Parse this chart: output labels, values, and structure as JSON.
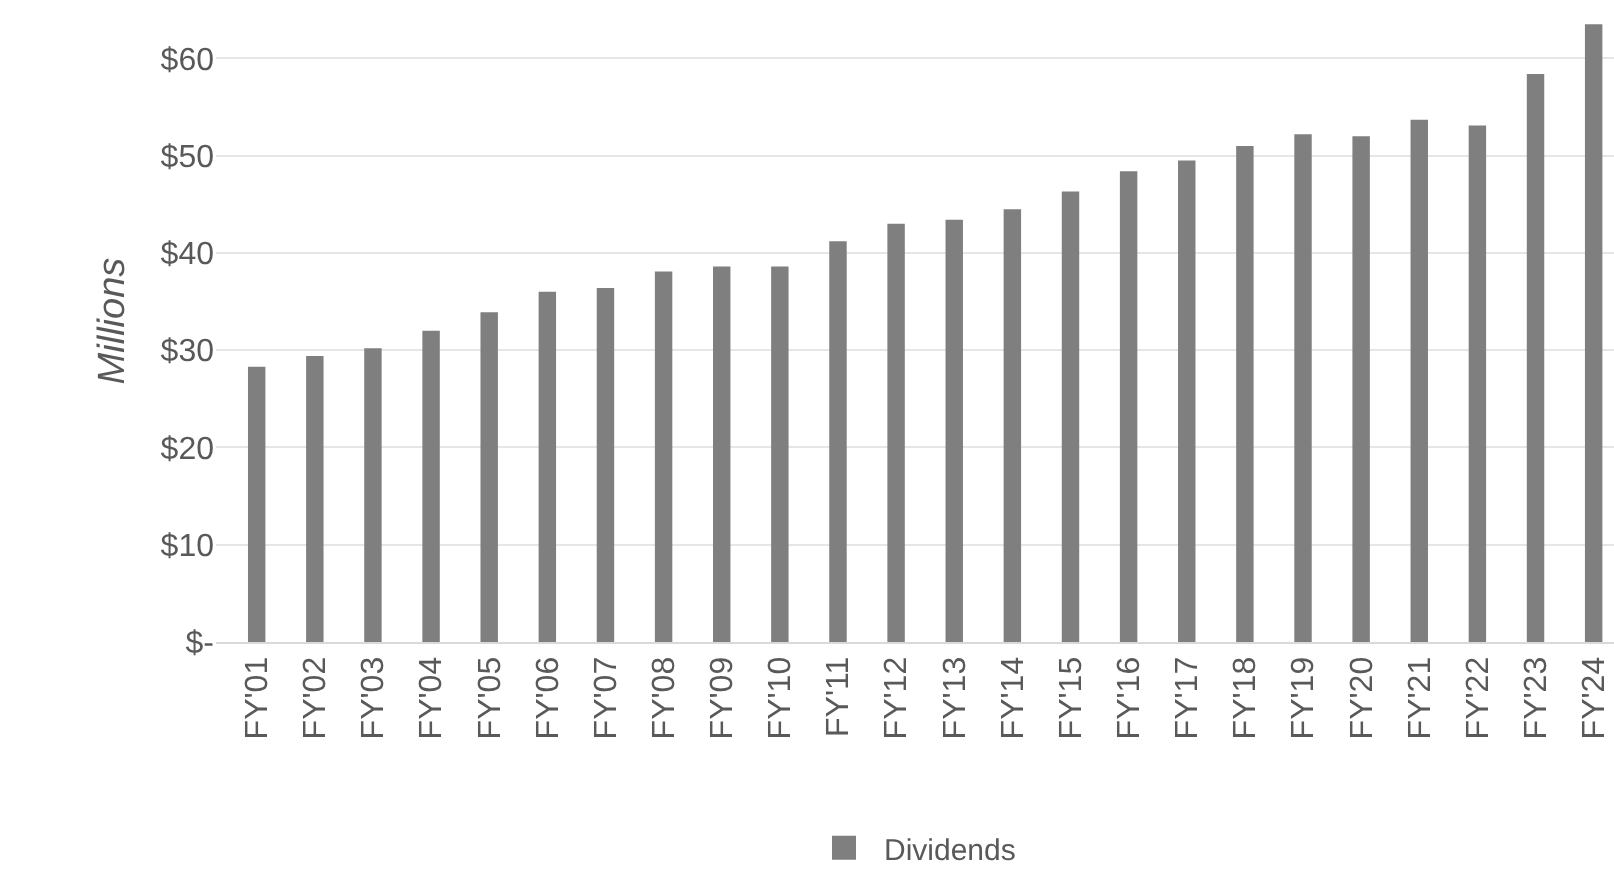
{
  "chart_data": {
    "type": "bar",
    "ylabel": "Millions",
    "categories": [
      "FY'01",
      "FY'02",
      "FY'03",
      "FY'04",
      "FY'05",
      "FY'06",
      "FY'07",
      "FY'08",
      "FY'09",
      "FY'10",
      "FY'11",
      "FY'12",
      "FY'13",
      "FY'14",
      "FY'15",
      "FY'16",
      "FY'17",
      "FY'18",
      "FY'19",
      "FY'20",
      "FY'21",
      "FY'22",
      "FY'23",
      "FY'24"
    ],
    "series": [
      {
        "name": "Dividends",
        "color": "#7f7f7f",
        "values": [
          28.3,
          29.4,
          30.2,
          32.0,
          33.9,
          36.0,
          36.4,
          38.1,
          38.6,
          38.6,
          41.2,
          43.0,
          43.4,
          44.5,
          46.3,
          48.4,
          49.5,
          51.0,
          52.2,
          52.0,
          53.7,
          53.1,
          58.4,
          63.5
        ]
      }
    ],
    "ylim": [
      0,
      66
    ],
    "yticks": [
      {
        "value": 0,
        "label": "$-"
      },
      {
        "value": 10,
        "label": "$10"
      },
      {
        "value": 20,
        "label": "$20"
      },
      {
        "value": 30,
        "label": "$30"
      },
      {
        "value": 40,
        "label": "$40"
      },
      {
        "value": 50,
        "label": "$50"
      },
      {
        "value": 60,
        "label": "$60"
      }
    ],
    "grid": "y",
    "legend": "bottom"
  }
}
